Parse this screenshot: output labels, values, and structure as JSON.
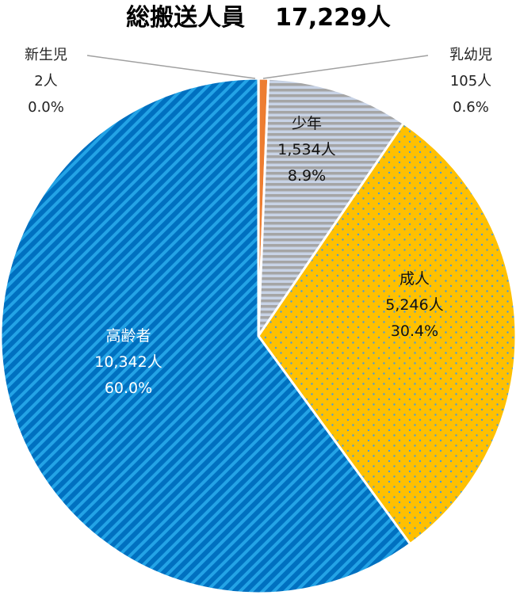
{
  "chart_data": {
    "type": "pie",
    "title": "総搬送人員　17,229人",
    "title_label": "総搬送人員",
    "title_total": "17,229人",
    "unit": "人",
    "slices": [
      {
        "name": "新生児",
        "value": 2,
        "value_label": "2人",
        "percent_label": "0.0%",
        "color": "#ffffff"
      },
      {
        "name": "乳幼児",
        "value": 105,
        "value_label": "105人",
        "percent_label": "0.6%",
        "color": "#ED7D31"
      },
      {
        "name": "少年",
        "value": 1534,
        "value_label": "1,534人",
        "percent_label": "8.9%",
        "color": "#A5A5A5"
      },
      {
        "name": "成人",
        "value": 5246,
        "value_label": "5,246人",
        "percent_label": "30.4%",
        "color": "#FFC000"
      },
      {
        "name": "高齢者",
        "value": 10342,
        "value_label": "10,342人",
        "percent_label": "60.0%",
        "color": "#0070C0"
      }
    ]
  }
}
